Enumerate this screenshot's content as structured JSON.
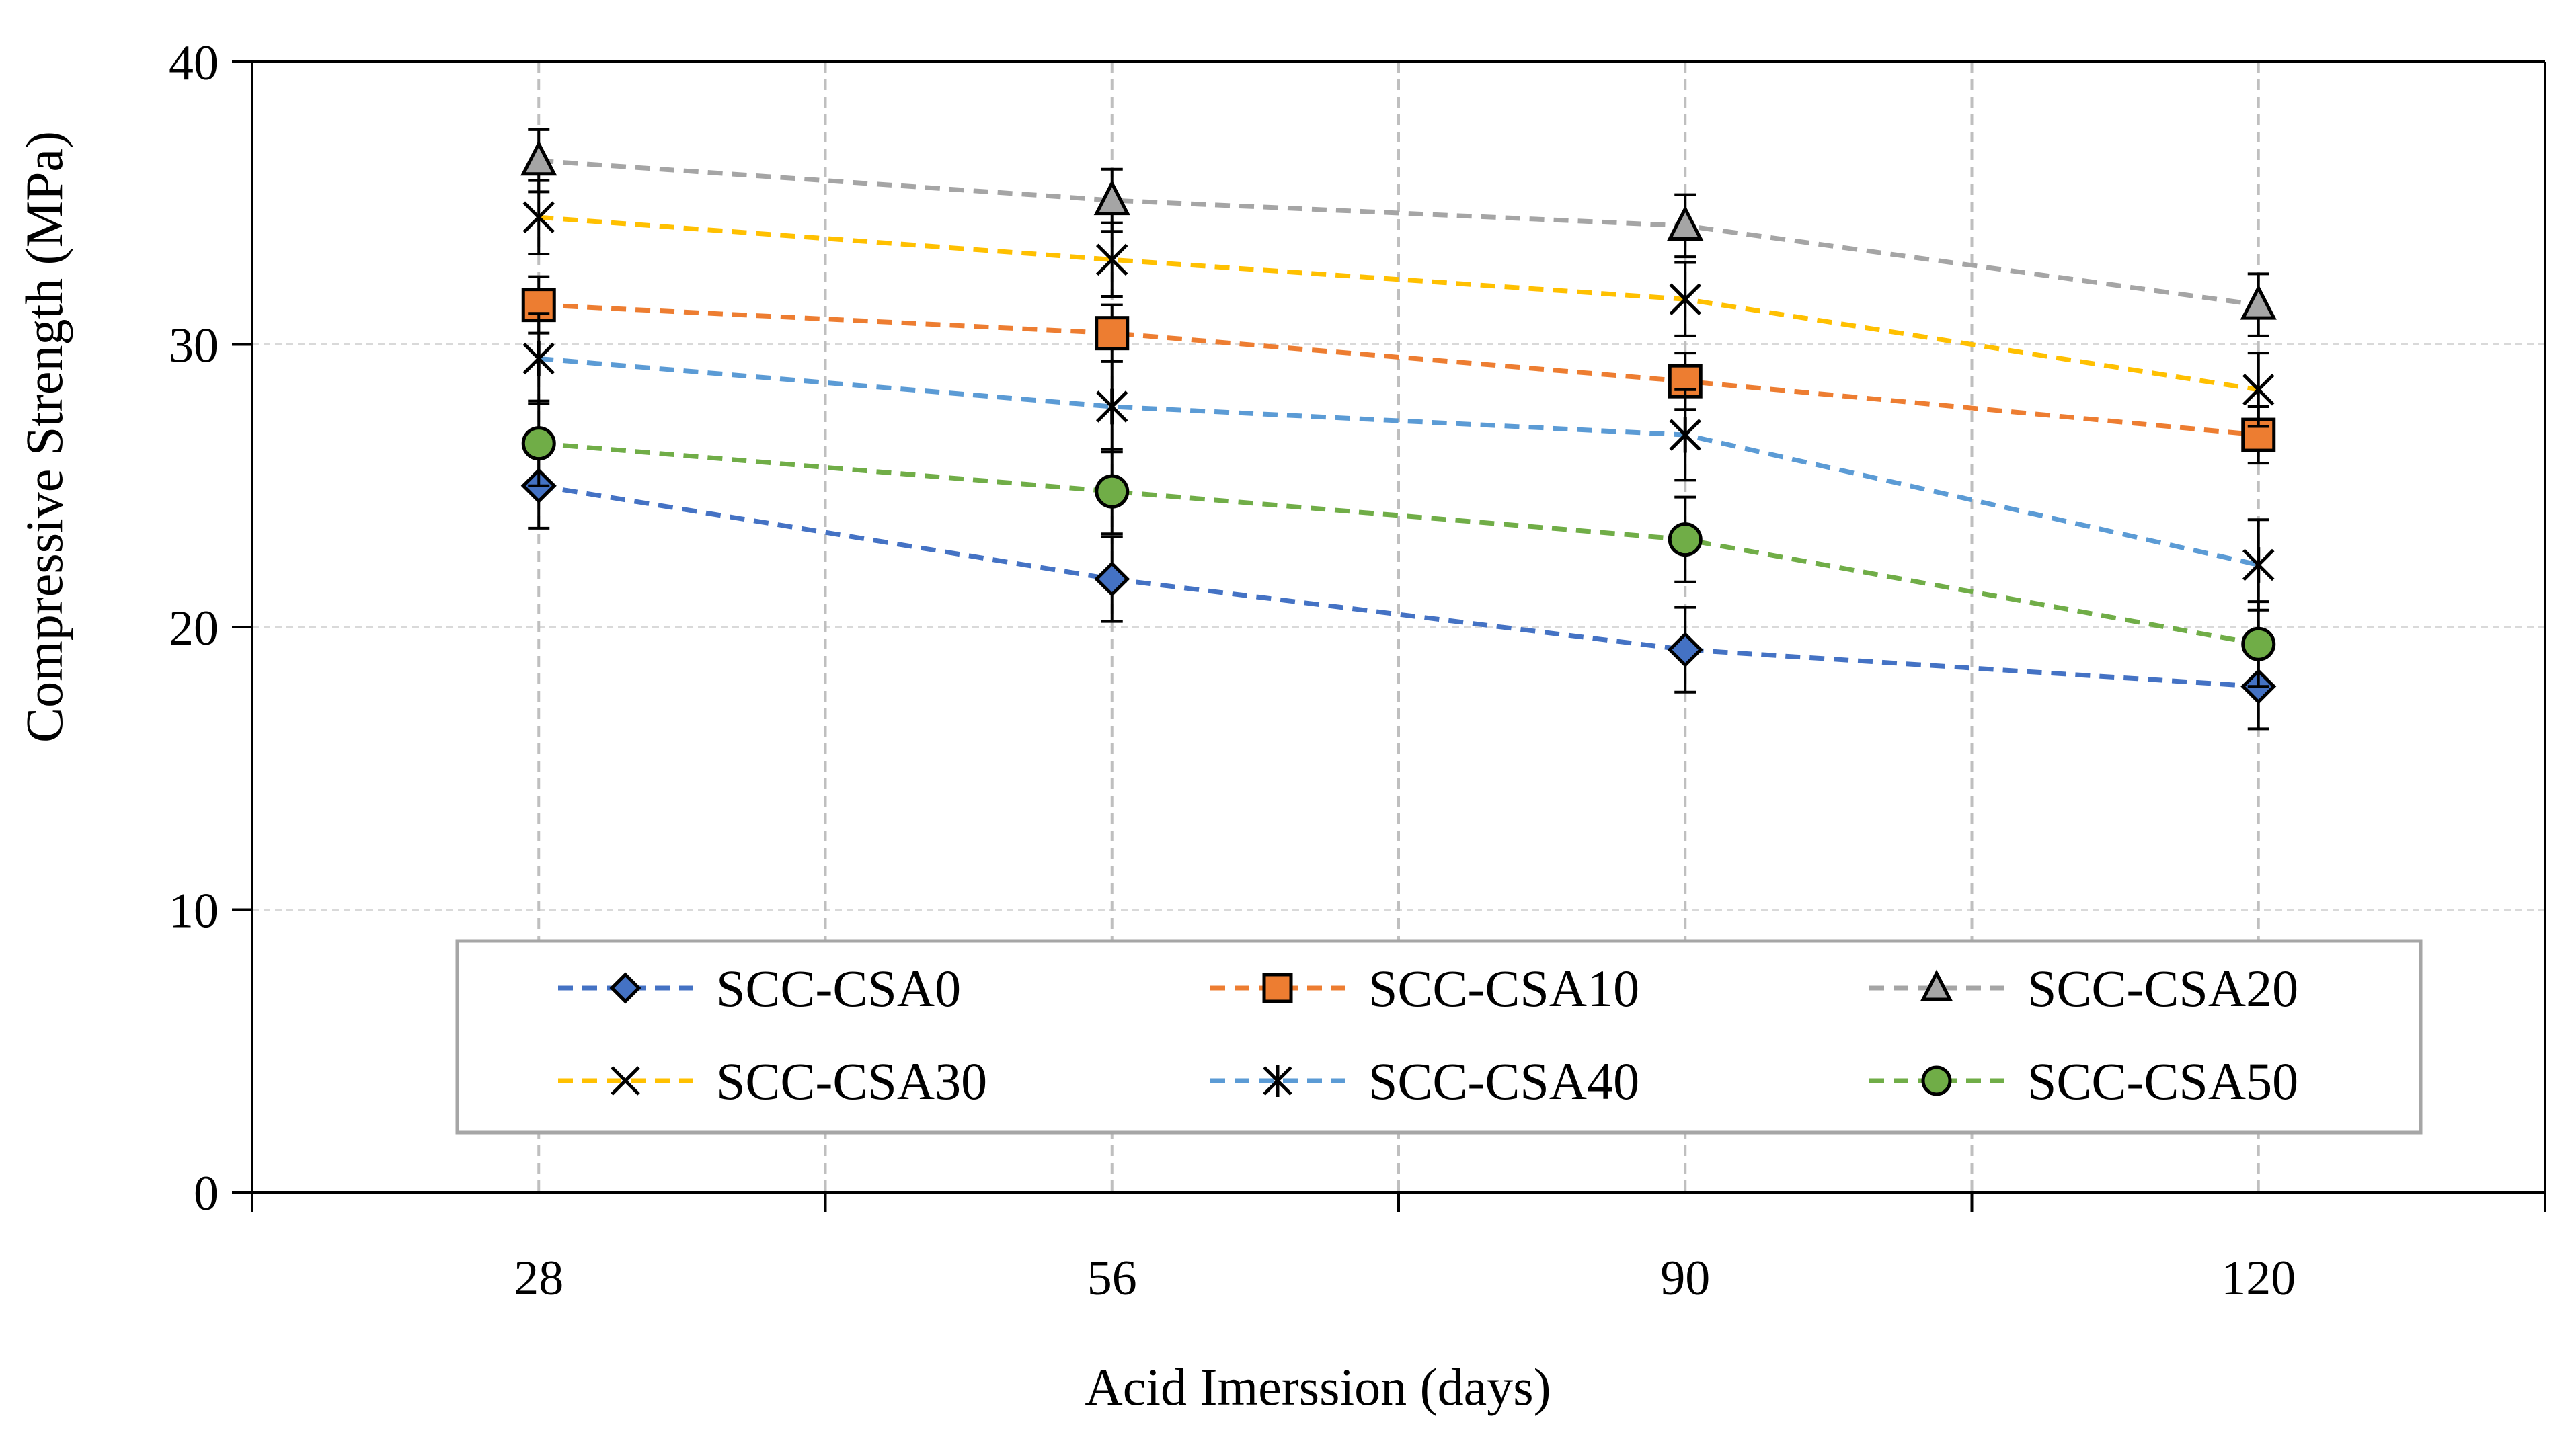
{
  "chart_data": {
    "type": "line",
    "title": "",
    "xlabel": "Acid Imerssion (days)",
    "ylabel": "Compressive Strength (MPa)",
    "categories": [
      "28",
      "56",
      "90",
      "120"
    ],
    "ylim": [
      0,
      40
    ],
    "yticks": [
      "0",
      "10",
      "20",
      "30",
      "40"
    ],
    "grid": true,
    "line_style": "dashed",
    "legend_position": "bottom-center",
    "series": [
      {
        "name": "SCC-CSA0",
        "marker": "diamond",
        "color": "#4472C4",
        "values": [
          25.0,
          21.7,
          19.2,
          17.9
        ],
        "errors": [
          1.5,
          1.5,
          1.5,
          1.5
        ]
      },
      {
        "name": "SCC-CSA10",
        "marker": "square",
        "color": "#ED7D31",
        "values": [
          31.4,
          30.4,
          28.7,
          26.8
        ],
        "errors": [
          1.0,
          1.0,
          1.0,
          1.0
        ]
      },
      {
        "name": "SCC-CSA20",
        "marker": "triangle",
        "color": "#A5A5A5",
        "values": [
          36.5,
          35.1,
          34.2,
          31.4
        ],
        "errors": [
          1.1,
          1.1,
          1.1,
          1.1
        ]
      },
      {
        "name": "SCC-CSA30",
        "marker": "x",
        "color": "#FFC000",
        "values": [
          34.5,
          33.0,
          31.6,
          28.4
        ],
        "errors": [
          1.3,
          1.3,
          1.3,
          1.3
        ]
      },
      {
        "name": "SCC-CSA40",
        "marker": "star",
        "color": "#5B9BD5",
        "values": [
          29.5,
          27.8,
          26.8,
          22.2
        ],
        "errors": [
          1.6,
          1.6,
          1.6,
          1.6
        ]
      },
      {
        "name": "SCC-CSA50",
        "marker": "circle",
        "color": "#70AD47",
        "values": [
          26.5,
          24.8,
          23.1,
          19.4
        ],
        "errors": [
          1.5,
          1.5,
          1.5,
          1.5
        ]
      }
    ]
  }
}
